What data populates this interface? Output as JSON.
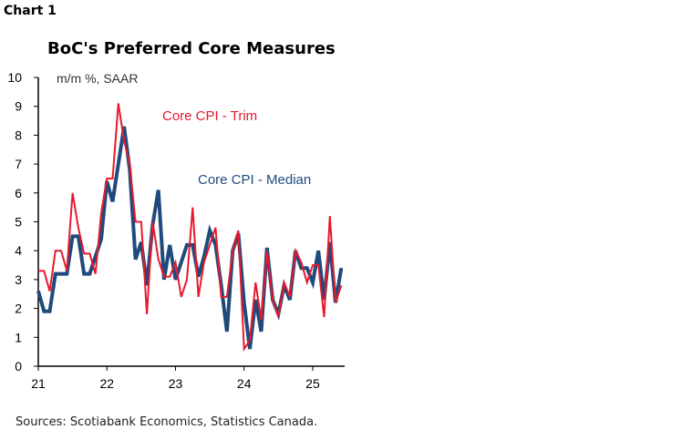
{
  "header": {
    "chart_label": "Chart 1"
  },
  "footer": {
    "source": "Sources: Scotiabank Economics, Statistics Canada."
  },
  "chart_data": {
    "type": "line",
    "title": "BoC's Preferred Core Measures",
    "ylabel": "m/m %, SAAR",
    "xlabel": "",
    "ylim": [
      0,
      10
    ],
    "yticks": [
      0,
      1,
      2,
      3,
      4,
      5,
      6,
      7,
      8,
      9,
      10
    ],
    "xticks": [
      "21",
      "22",
      "23",
      "24",
      "25"
    ],
    "x_start": "2021-01",
    "frequency": "monthly",
    "grid": false,
    "series": [
      {
        "name": "Core CPI - Trim",
        "color": "#e8192c",
        "values": [
          3.3,
          3.3,
          2.6,
          4.0,
          4.0,
          3.3,
          6.0,
          4.8,
          3.9,
          3.9,
          3.2,
          5.3,
          6.5,
          6.5,
          9.1,
          7.8,
          7.0,
          5.0,
          5.0,
          1.8,
          5.0,
          3.7,
          3.1,
          3.1,
          3.6,
          2.4,
          3.0,
          5.5,
          2.4,
          3.6,
          4.2,
          4.8,
          2.4,
          2.4,
          4.0,
          4.7,
          0.6,
          0.9,
          2.9,
          1.6,
          4.0,
          2.3,
          1.7,
          2.9,
          2.4,
          4.0,
          3.6,
          2.9,
          3.5,
          3.5,
          1.7,
          5.2,
          2.2,
          2.8
        ]
      },
      {
        "name": "Core CPI - Median",
        "color": "#1f4a7c",
        "values": [
          2.6,
          1.9,
          1.9,
          3.2,
          3.2,
          3.2,
          4.5,
          4.5,
          3.2,
          3.2,
          3.8,
          4.4,
          6.4,
          5.7,
          7.0,
          8.3,
          6.8,
          3.7,
          4.3,
          2.8,
          4.9,
          6.1,
          3.0,
          4.2,
          3.0,
          3.6,
          4.2,
          4.2,
          3.1,
          3.8,
          4.7,
          4.2,
          2.8,
          1.2,
          4.0,
          4.6,
          2.2,
          0.6,
          2.3,
          1.2,
          4.1,
          2.3,
          1.8,
          2.8,
          2.3,
          4.0,
          3.4,
          3.4,
          2.9,
          4.0,
          2.3,
          4.3,
          2.2,
          3.4
        ]
      }
    ]
  }
}
